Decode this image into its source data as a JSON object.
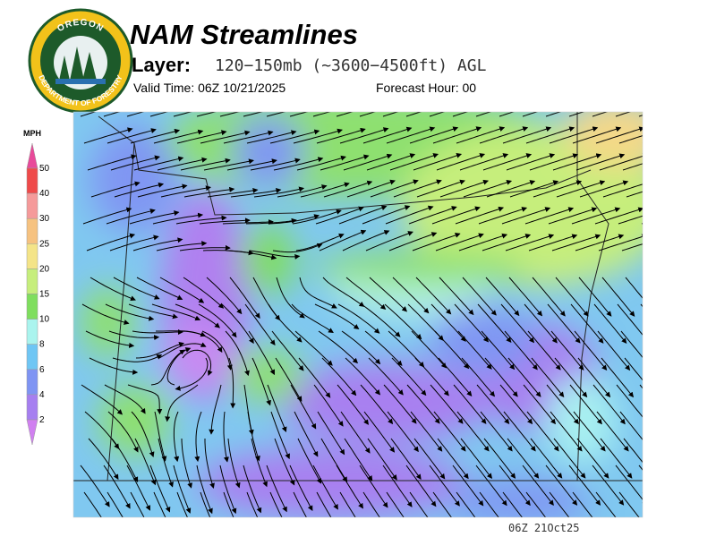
{
  "header": {
    "title": "NAM Streamlines",
    "layer_label": "Layer:",
    "layer": "120−150mb (~3600−4500ft) AGL",
    "valid_time": "Valid Time: 06Z 10/21/2025",
    "forecast_hour": "Forecast Hour: 00"
  },
  "logo": {
    "top": "OREGON",
    "bottom": "DEPARTMENT OF FORESTRY"
  },
  "legend": {
    "unit": "MPH",
    "labels": [
      "50",
      "40",
      "30",
      "25",
      "20",
      "15",
      "10",
      "8",
      "6",
      "4",
      "2"
    ]
  },
  "footer": {
    "timestamp": "06Z 21Oct25"
  }
}
